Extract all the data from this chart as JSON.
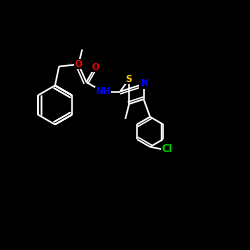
{
  "background_color": "#000000",
  "bond_color": "#ffffff",
  "atom_colors": {
    "O": "#ff0000",
    "S": "#ffcc00",
    "N": "#0000ff",
    "Cl": "#00cc00",
    "C": "#ffffff",
    "H": "#ffffff"
  },
  "bond_width": 1.2,
  "font_size": 6.5,
  "figsize": [
    2.5,
    2.5
  ],
  "dpi": 100
}
